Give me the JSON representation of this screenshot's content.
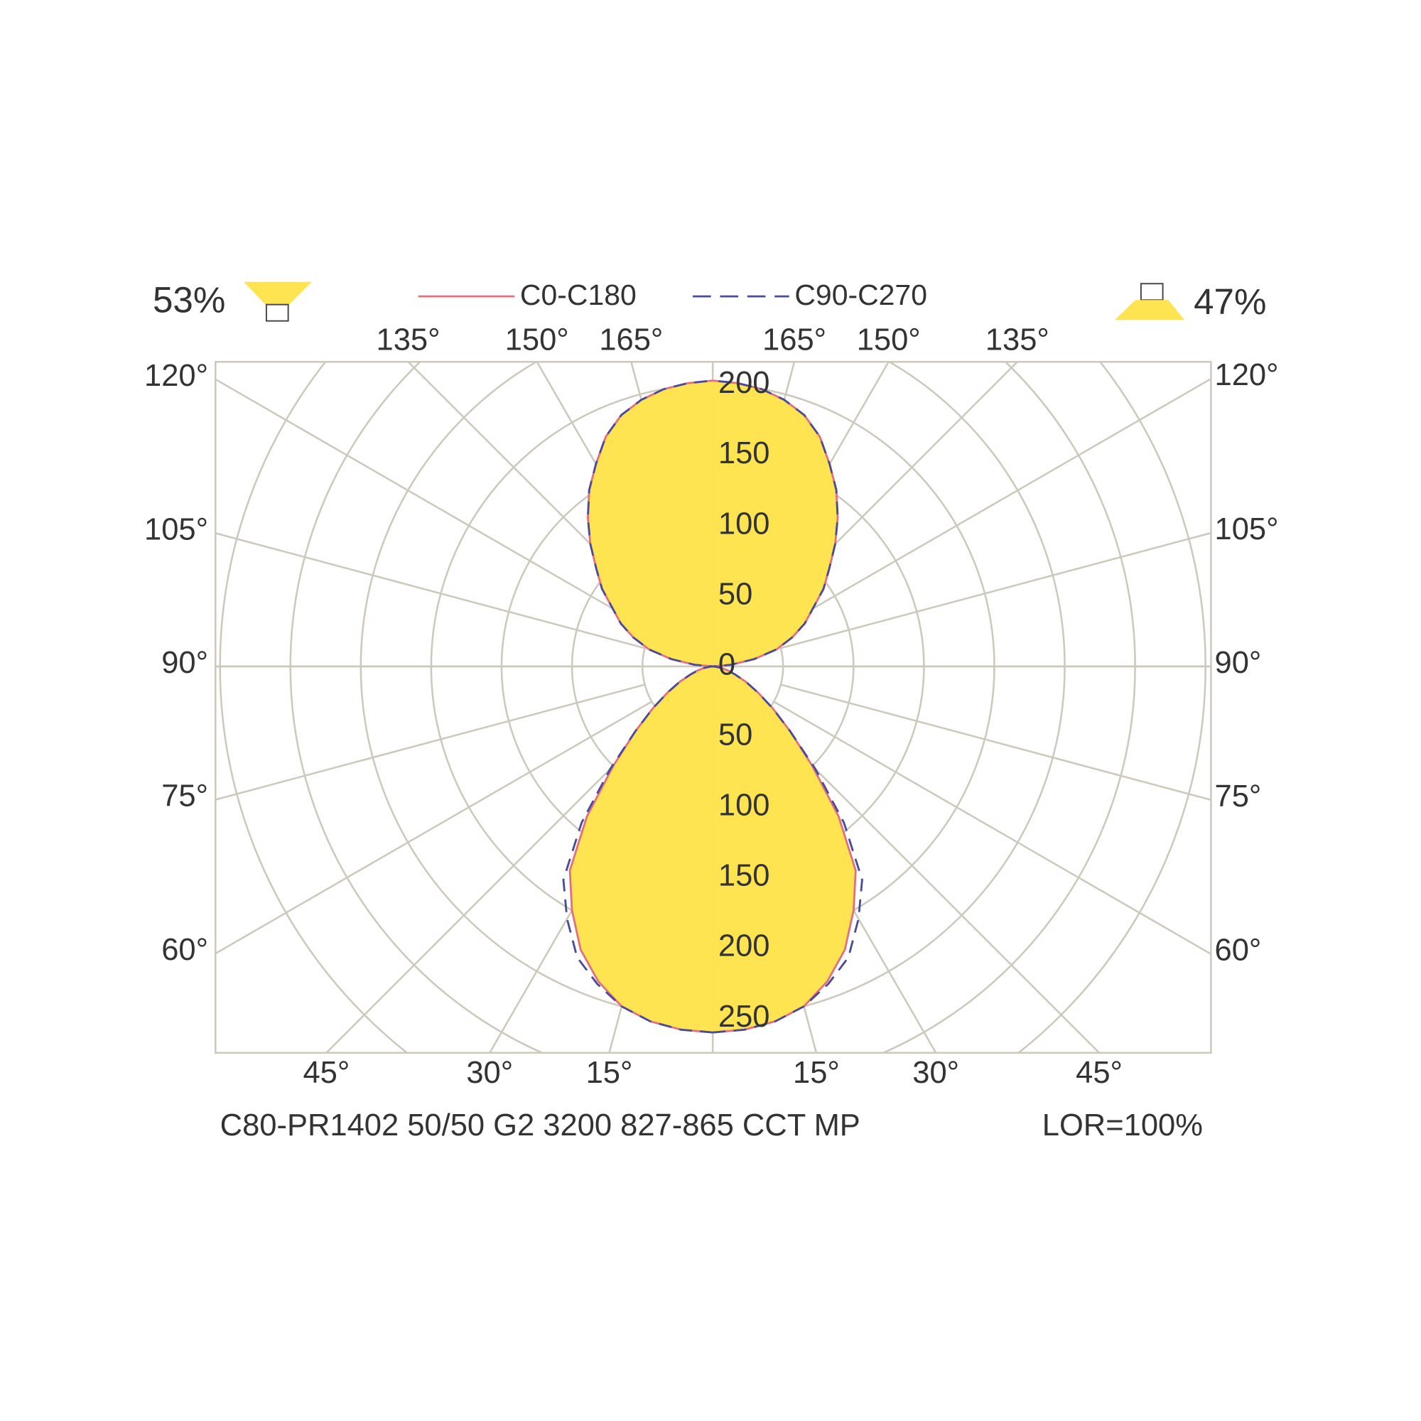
{
  "chart_data": {
    "type": "polar",
    "gamma": [
      0,
      5,
      10,
      15,
      20,
      25,
      30,
      35,
      40,
      45,
      50,
      55,
      60,
      65,
      70,
      75,
      80,
      85,
      90,
      95,
      100,
      105,
      110,
      115,
      120,
      125,
      130,
      135,
      140,
      145,
      150,
      155,
      160,
      165,
      170,
      175,
      180
    ],
    "series": [
      {
        "name": "C0-C180",
        "color": "#e07080",
        "fill": "#ffe452",
        "dash": false,
        "values": [
          260,
          259,
          256,
          250,
          238,
          222,
          200,
          177,
          139,
          100,
          72,
          52,
          37,
          26,
          17,
          11,
          6,
          2,
          0,
          13,
          30,
          47,
          60,
          72,
          82,
          96,
          108,
          123,
          138,
          153,
          166,
          180,
          190,
          196,
          200,
          202,
          203
        ]
      },
      {
        "name": "C90-C270",
        "color": "#4a4a9a",
        "dash": true,
        "values": [
          260,
          259,
          256,
          250,
          240,
          228,
          207,
          185,
          145,
          103,
          72,
          52,
          37,
          26,
          17,
          11,
          6,
          2,
          0,
          13,
          30,
          47,
          60,
          72,
          82,
          96,
          108,
          123,
          138,
          153,
          166,
          180,
          190,
          196,
          200,
          202,
          203
        ]
      }
    ],
    "rlim": [
      0,
      350
    ],
    "rticks": [
      0,
      50,
      100,
      150,
      200,
      250,
      300,
      350
    ],
    "angle_ticks": [
      {
        "value": 15,
        "label": "15°"
      },
      {
        "value": 30,
        "label": "30°"
      },
      {
        "value": 45,
        "label": "45°"
      },
      {
        "value": 60,
        "label": "60°"
      },
      {
        "value": 75,
        "label": "75°"
      },
      {
        "value": 90,
        "label": "90°"
      },
      {
        "value": 105,
        "label": "105°"
      },
      {
        "value": 120,
        "label": "120°"
      },
      {
        "value": 135,
        "label": "135°"
      },
      {
        "value": 150,
        "label": "150°"
      },
      {
        "value": 165,
        "label": "165°"
      }
    ],
    "grid_color": "#cdc9bd",
    "flux_down": "53%",
    "flux_up": "47%",
    "luminaire": "C80-PR1402 50/50 G2 3200 827-865 CCT MP",
    "lor": "LOR=100%"
  }
}
